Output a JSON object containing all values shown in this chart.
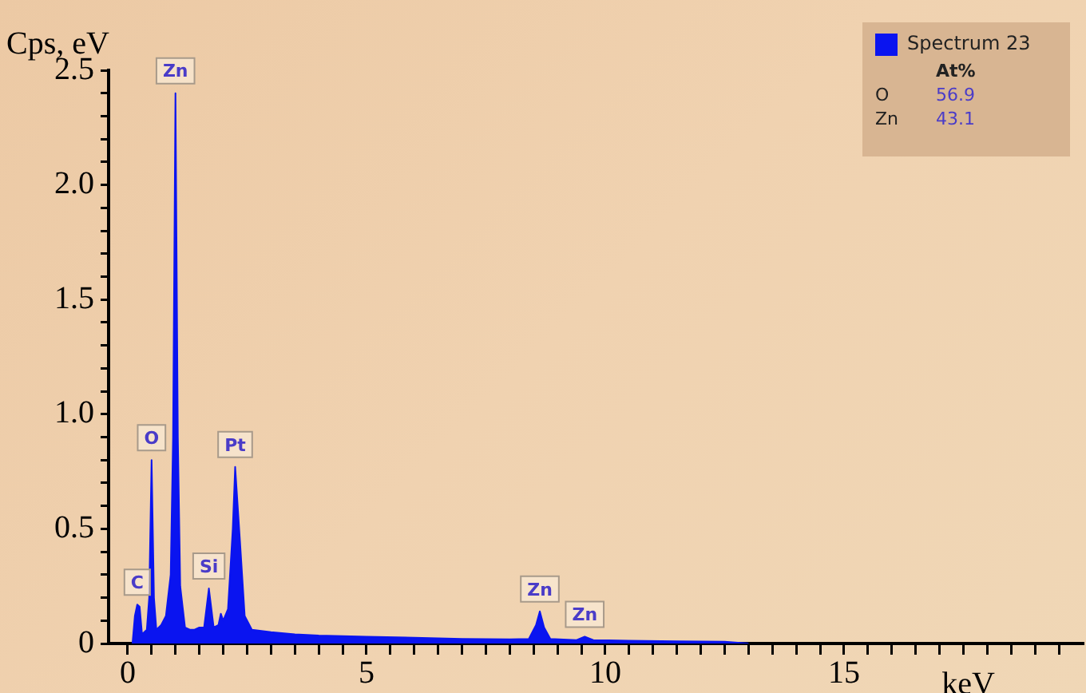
{
  "chart_data": {
    "type": "area",
    "xlabel": "keV",
    "ylabel": "Cps, eV",
    "x": [
      0.1,
      0.15,
      0.2,
      0.25,
      0.3,
      0.4,
      0.45,
      0.5,
      0.55,
      0.6,
      0.7,
      0.8,
      0.9,
      0.95,
      1.0,
      1.05,
      1.1,
      1.2,
      1.3,
      1.4,
      1.5,
      1.6,
      1.7,
      1.8,
      1.9,
      1.95,
      2.0,
      2.1,
      2.2,
      2.25,
      2.35,
      2.45,
      2.6,
      3,
      3.5,
      4,
      5,
      6,
      7,
      8,
      8.4,
      8.55,
      8.63,
      8.72,
      8.85,
      9.4,
      9.57,
      9.75,
      10.5,
      11.5,
      12.5,
      13
    ],
    "series": [
      {
        "name": "Spectrum 23",
        "color": "#0a14f0",
        "values": [
          0,
          0.12,
          0.17,
          0.16,
          0.04,
          0.06,
          0.2,
          0.8,
          0.2,
          0.06,
          0.08,
          0.12,
          0.3,
          0.9,
          2.4,
          0.9,
          0.25,
          0.07,
          0.06,
          0.06,
          0.07,
          0.07,
          0.24,
          0.07,
          0.08,
          0.13,
          0.1,
          0.15,
          0.5,
          0.77,
          0.45,
          0.12,
          0.06,
          0.05,
          0.04,
          0.035,
          0.03,
          0.025,
          0.02,
          0.018,
          0.02,
          0.08,
          0.14,
          0.07,
          0.02,
          0.015,
          0.03,
          0.015,
          0.012,
          0.01,
          0.008,
          0
        ]
      }
    ],
    "xlim": [
      -0.4,
      20
    ],
    "xticks": [
      0,
      {
        "value": 0.5,
        "label": null
      },
      {
        "value": 1,
        "label": null
      },
      {
        "value": 1.5,
        "label": null
      },
      {
        "value": 2,
        "label": null
      },
      {
        "value": 2.5,
        "label": null
      },
      {
        "value": 3,
        "label": null
      },
      {
        "value": 3.5,
        "label": null
      },
      {
        "value": 4,
        "label": null
      },
      {
        "value": 4.5,
        "label": null
      },
      5,
      {
        "value": 5.5,
        "label": null
      },
      {
        "value": 6,
        "label": null
      },
      {
        "value": 6.5,
        "label": null
      },
      {
        "value": 7,
        "label": null
      },
      {
        "value": 7.5,
        "label": null
      },
      {
        "value": 8,
        "label": null
      },
      {
        "value": 8.5,
        "label": null
      },
      {
        "value": 9,
        "label": null
      },
      {
        "value": 9.5,
        "label": null
      },
      10,
      {
        "value": 10.5,
        "label": null
      },
      {
        "value": 11,
        "label": null
      },
      {
        "value": 11.5,
        "label": null
      },
      {
        "value": 12,
        "label": null
      },
      {
        "value": 12.5,
        "label": null
      },
      {
        "value": 13,
        "label": null
      },
      {
        "value": 13.5,
        "label": null
      },
      {
        "value": 14,
        "label": null
      },
      {
        "value": 14.5,
        "label": null
      },
      15,
      {
        "value": 15.5,
        "label": null
      },
      {
        "value": 16,
        "label": null
      },
      {
        "value": 16.5,
        "label": null
      },
      {
        "value": 17,
        "label": null
      },
      {
        "value": 17.5,
        "label": null
      },
      {
        "value": 18,
        "label": null
      },
      {
        "value": 18.5,
        "label": null
      },
      {
        "value": 19,
        "label": null
      },
      {
        "value": 19.5,
        "label": null
      }
    ],
    "ylim": [
      0,
      2.5
    ],
    "yticks": [
      0,
      {
        "value": 0.1,
        "label": null
      },
      {
        "value": 0.2,
        "label": null
      },
      {
        "value": 0.3,
        "label": null
      },
      {
        "value": 0.4,
        "label": null
      },
      0.5,
      {
        "value": 0.6,
        "label": null
      },
      {
        "value": 0.7,
        "label": null
      },
      {
        "value": 0.8,
        "label": null
      },
      {
        "value": 0.9,
        "label": null
      },
      {
        "value": 1,
        "label": "1.0"
      },
      {
        "value": 1.1,
        "label": null
      },
      {
        "value": 1.2,
        "label": null
      },
      {
        "value": 1.3,
        "label": null
      },
      {
        "value": 1.4,
        "label": null
      },
      1.5,
      {
        "value": 1.6,
        "label": null
      },
      {
        "value": 1.7,
        "label": null
      },
      {
        "value": 1.8,
        "label": null
      },
      {
        "value": 1.9,
        "label": null
      },
      {
        "value": 2,
        "label": "2.0"
      },
      {
        "value": 2.1,
        "label": null
      },
      {
        "value": 2.2,
        "label": null
      },
      {
        "value": 2.3,
        "label": null
      },
      {
        "value": 2.4,
        "label": null
      },
      2.5
    ],
    "grid": false,
    "legend": "top right",
    "marker": "none",
    "annotations": [
      {
        "text": "C",
        "x": 0.2,
        "y": 0.17
      },
      {
        "text": "O",
        "x": 0.5,
        "y": 0.8
      },
      {
        "text": "Zn",
        "x": 1.0,
        "y": 2.4
      },
      {
        "text": "Si",
        "x": 1.7,
        "y": 0.24
      },
      {
        "text": "Pt",
        "x": 2.25,
        "y": 0.77
      },
      {
        "text": "Zn",
        "x": 8.63,
        "y": 0.14
      },
      {
        "text": "Zn",
        "x": 9.57,
        "y": 0.03
      },
      "At%",
      "O",
      "56.9",
      "Zn",
      "43.1"
    ]
  }
}
